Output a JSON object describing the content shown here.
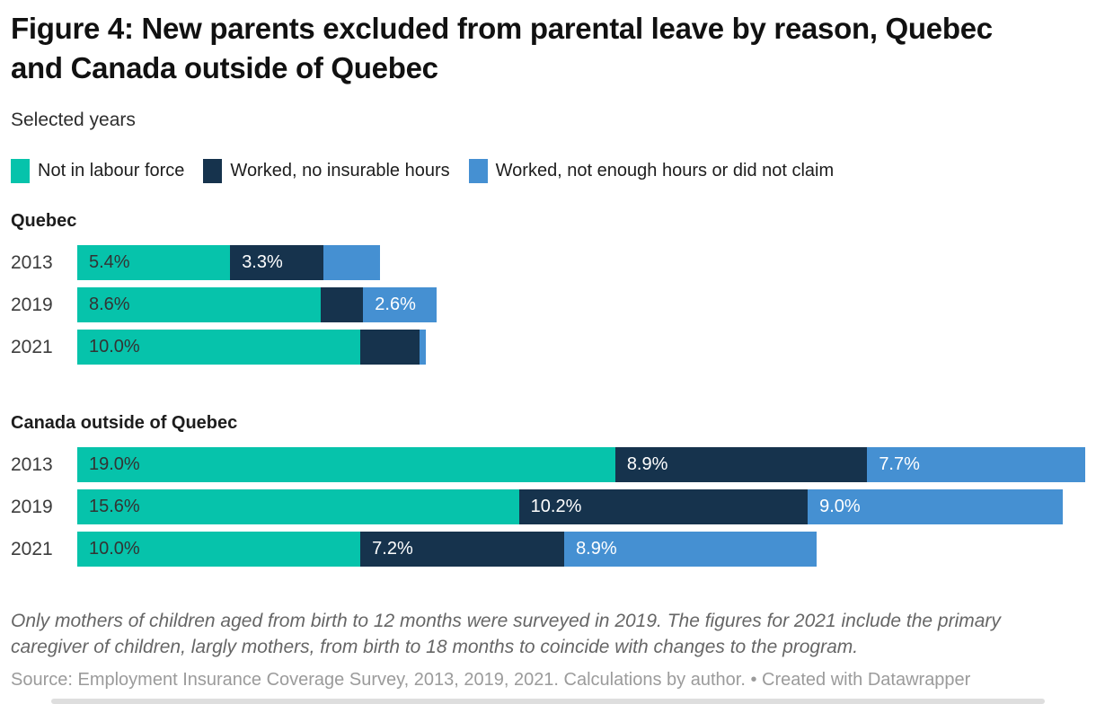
{
  "header": {
    "title": "Figure 4: New parents excluded from parental leave by reason, Quebec and Canada outside of Quebec",
    "subtitle": "Selected years"
  },
  "legend": [
    {
      "label": "Not in labour force",
      "color": "#06c3ab",
      "label_text_color": "#333333"
    },
    {
      "label": "Worked, no insurable hours",
      "color": "#16334d",
      "label_text_color": "#ffffff"
    },
    {
      "label": "Worked, not enough hours or did not claim",
      "color": "#4590d2",
      "label_text_color": "#ffffff"
    }
  ],
  "chart_data": {
    "type": "bar",
    "orientation": "horizontal",
    "stacked": true,
    "unit": "%",
    "grid": false,
    "legend_position": "top",
    "axis_max_total": 35.6,
    "series_names": [
      "Not in labour force",
      "Worked, no insurable hours",
      "Worked, not enough hours or did not claim"
    ],
    "groups": [
      {
        "label": "Quebec",
        "categories": [
          "2013",
          "2019",
          "2021"
        ],
        "rows": [
          {
            "year": "2013",
            "values": [
              5.4,
              3.3,
              2.0
            ],
            "labels": [
              "5.4%",
              "3.3%",
              null
            ]
          },
          {
            "year": "2019",
            "values": [
              8.6,
              1.5,
              2.6
            ],
            "labels": [
              "8.6%",
              null,
              "2.6%"
            ]
          },
          {
            "year": "2021",
            "values": [
              10.0,
              2.1,
              0.2
            ],
            "labels": [
              "10.0%",
              null,
              null
            ]
          }
        ]
      },
      {
        "label": "Canada outside of Quebec",
        "categories": [
          "2013",
          "2019",
          "2021"
        ],
        "rows": [
          {
            "year": "2013",
            "values": [
              19.0,
              8.9,
              7.7
            ],
            "labels": [
              "19.0%",
              "8.9%",
              "7.7%"
            ]
          },
          {
            "year": "2019",
            "values": [
              15.6,
              10.2,
              9.0
            ],
            "labels": [
              "15.6%",
              "10.2%",
              "9.0%"
            ]
          },
          {
            "year": "2021",
            "values": [
              10.0,
              7.2,
              8.9
            ],
            "labels": [
              "10.0%",
              "7.2%",
              "8.9%"
            ]
          }
        ]
      }
    ]
  },
  "footer": {
    "note": "Only mothers of children aged from birth to 12 months were surveyed in 2019. The figures for 2021 include the primary caregiver of children, largly mothers, from birth to 18 months to coincide with changes to the program.",
    "source": "Source: Employment Insurance Coverage Survey, 2013, 2019, 2021. Calculations by author. • Created with Datawrapper"
  }
}
